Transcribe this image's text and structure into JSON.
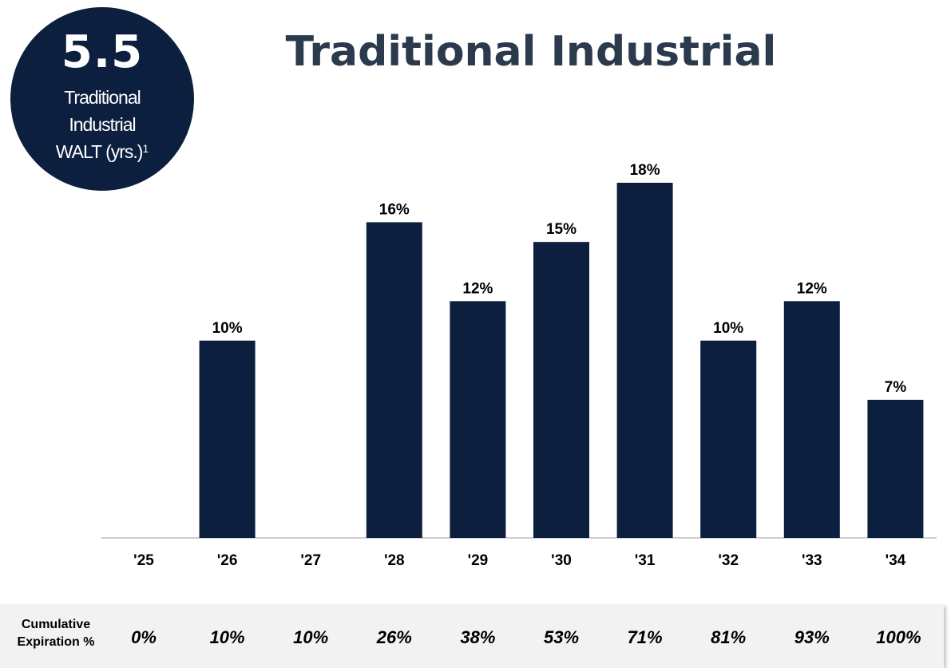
{
  "badge": {
    "value": "5.5",
    "label_lines": [
      "Traditional",
      "Industrial",
      "WALT (yrs.)"
    ],
    "footnote_marker": "1"
  },
  "colors": {
    "bar": "#0c1f3e",
    "title": "#2b3a4d",
    "band": "#f2f2f2"
  },
  "chart_data": {
    "type": "bar",
    "title": "Traditional Industrial",
    "categories": [
      "'25",
      "'26",
      "'27",
      "'28",
      "'29",
      "'30",
      "'31",
      "'32",
      "'33",
      "'34"
    ],
    "values": [
      0,
      10,
      0,
      16,
      12,
      15,
      18,
      10,
      12,
      7
    ],
    "data_labels": [
      "",
      "10%",
      "",
      "16%",
      "12%",
      "15%",
      "18%",
      "10%",
      "12%",
      "7%"
    ],
    "value_unit": "%",
    "ylim": [
      0,
      18
    ],
    "grid": false,
    "legend": "none"
  },
  "cumulative": {
    "label_lines": [
      "Cumulative",
      "Expiration %"
    ],
    "values": [
      "0%",
      "10%",
      "10%",
      "26%",
      "38%",
      "53%",
      "71%",
      "81%",
      "93%",
      "100%"
    ]
  }
}
